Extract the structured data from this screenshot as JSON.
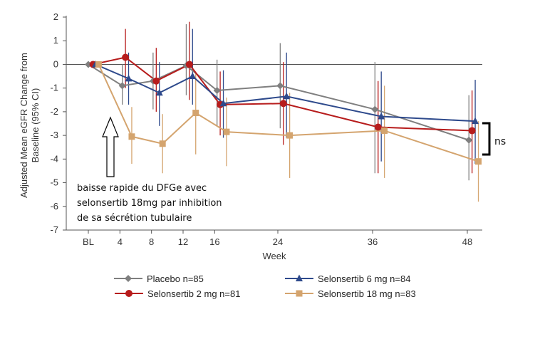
{
  "chart_data": {
    "type": "line",
    "xlabel": "Week",
    "ylabel": "Adjusted Mean eGFR Change from Baseline (95% CI)",
    "ylim": [
      -7,
      2
    ],
    "yticks": [
      2,
      1,
      0,
      -1,
      -2,
      -3,
      -4,
      -5,
      -6,
      -7
    ],
    "xticks": [
      {
        "value": 0,
        "label": "BL"
      },
      {
        "value": 4,
        "label": "4"
      },
      {
        "value": 8,
        "label": "8"
      },
      {
        "value": 12,
        "label": "12"
      },
      {
        "value": 16,
        "label": "16"
      },
      {
        "value": 24,
        "label": "24"
      },
      {
        "value": 36,
        "label": "36"
      },
      {
        "value": 48,
        "label": "48"
      }
    ],
    "reference_line_y": 0,
    "legend_position": "bottom",
    "series": [
      {
        "name": "Placebo n=85",
        "color": "#7f7f7f",
        "marker": "diamond",
        "x": [
          0,
          4.3,
          8.2,
          12.4,
          16.3,
          24.3,
          36.3,
          48.2
        ],
        "y": [
          0,
          -0.9,
          -0.7,
          -0.05,
          -1.1,
          -0.9,
          -1.9,
          -3.2
        ],
        "lower": [
          0,
          -1.7,
          -1.9,
          -1.3,
          -2.6,
          -2.7,
          -4.6,
          -4.9
        ],
        "upper": [
          0,
          0,
          0.5,
          1.7,
          0.2,
          0.9,
          0.1,
          -1.3
        ]
      },
      {
        "name": "Selonsertib 2 mg n=81",
        "color": "#b71c1c",
        "marker": "circle",
        "x": [
          0.6,
          4.7,
          8.6,
          12.8,
          16.7,
          24.7,
          36.7,
          48.6
        ],
        "y": [
          0,
          0.3,
          -0.7,
          0,
          -1.7,
          -1.65,
          -2.65,
          -2.8
        ],
        "lower": [
          0,
          -1.0,
          -2.0,
          -1.5,
          -3.0,
          -3.4,
          -4.6,
          -4.6
        ],
        "upper": [
          0,
          1.5,
          0.7,
          1.8,
          -0.3,
          0.1,
          -0.7,
          -1.1
        ]
      },
      {
        "name": "Selonsertib 6 mg n=84",
        "color": "#2e4a8c",
        "marker": "triangle",
        "x": [
          0.9,
          5.1,
          9.0,
          13.2,
          17.1,
          25.1,
          37.1,
          49.0
        ],
        "y": [
          0,
          -0.6,
          -1.2,
          -0.5,
          -1.65,
          -1.35,
          -2.2,
          -2.4
        ],
        "lower": [
          0,
          -1.7,
          -2.6,
          -1.7,
          -3.1,
          -3.1,
          -4.1,
          -4.2
        ],
        "upper": [
          0,
          0.5,
          0.1,
          1.5,
          -0.25,
          0.5,
          -0.3,
          -0.65
        ]
      },
      {
        "name": "Selonsertib 18 mg n=83",
        "color": "#d4a46e",
        "marker": "square",
        "x": [
          1.3,
          5.5,
          9.4,
          13.6,
          17.5,
          25.5,
          37.5,
          49.4
        ],
        "y": [
          0,
          -3.05,
          -3.35,
          -2.05,
          -2.85,
          -3.0,
          -2.8,
          -4.1
        ],
        "lower": [
          0,
          -4.2,
          -4.6,
          -3.8,
          -4.3,
          -4.8,
          -4.8,
          -5.8
        ],
        "upper": [
          0,
          -1.8,
          -2.1,
          -0.3,
          -1.4,
          -1.2,
          -0.9,
          -2.4
        ]
      }
    ]
  },
  "annotations": {
    "arrow_text": [
      "baisse rapide du DFGe avec",
      "selonsertib 18mg par inhibition",
      "de sa sécrétion tubulaire"
    ],
    "bracket_label": "ns"
  }
}
